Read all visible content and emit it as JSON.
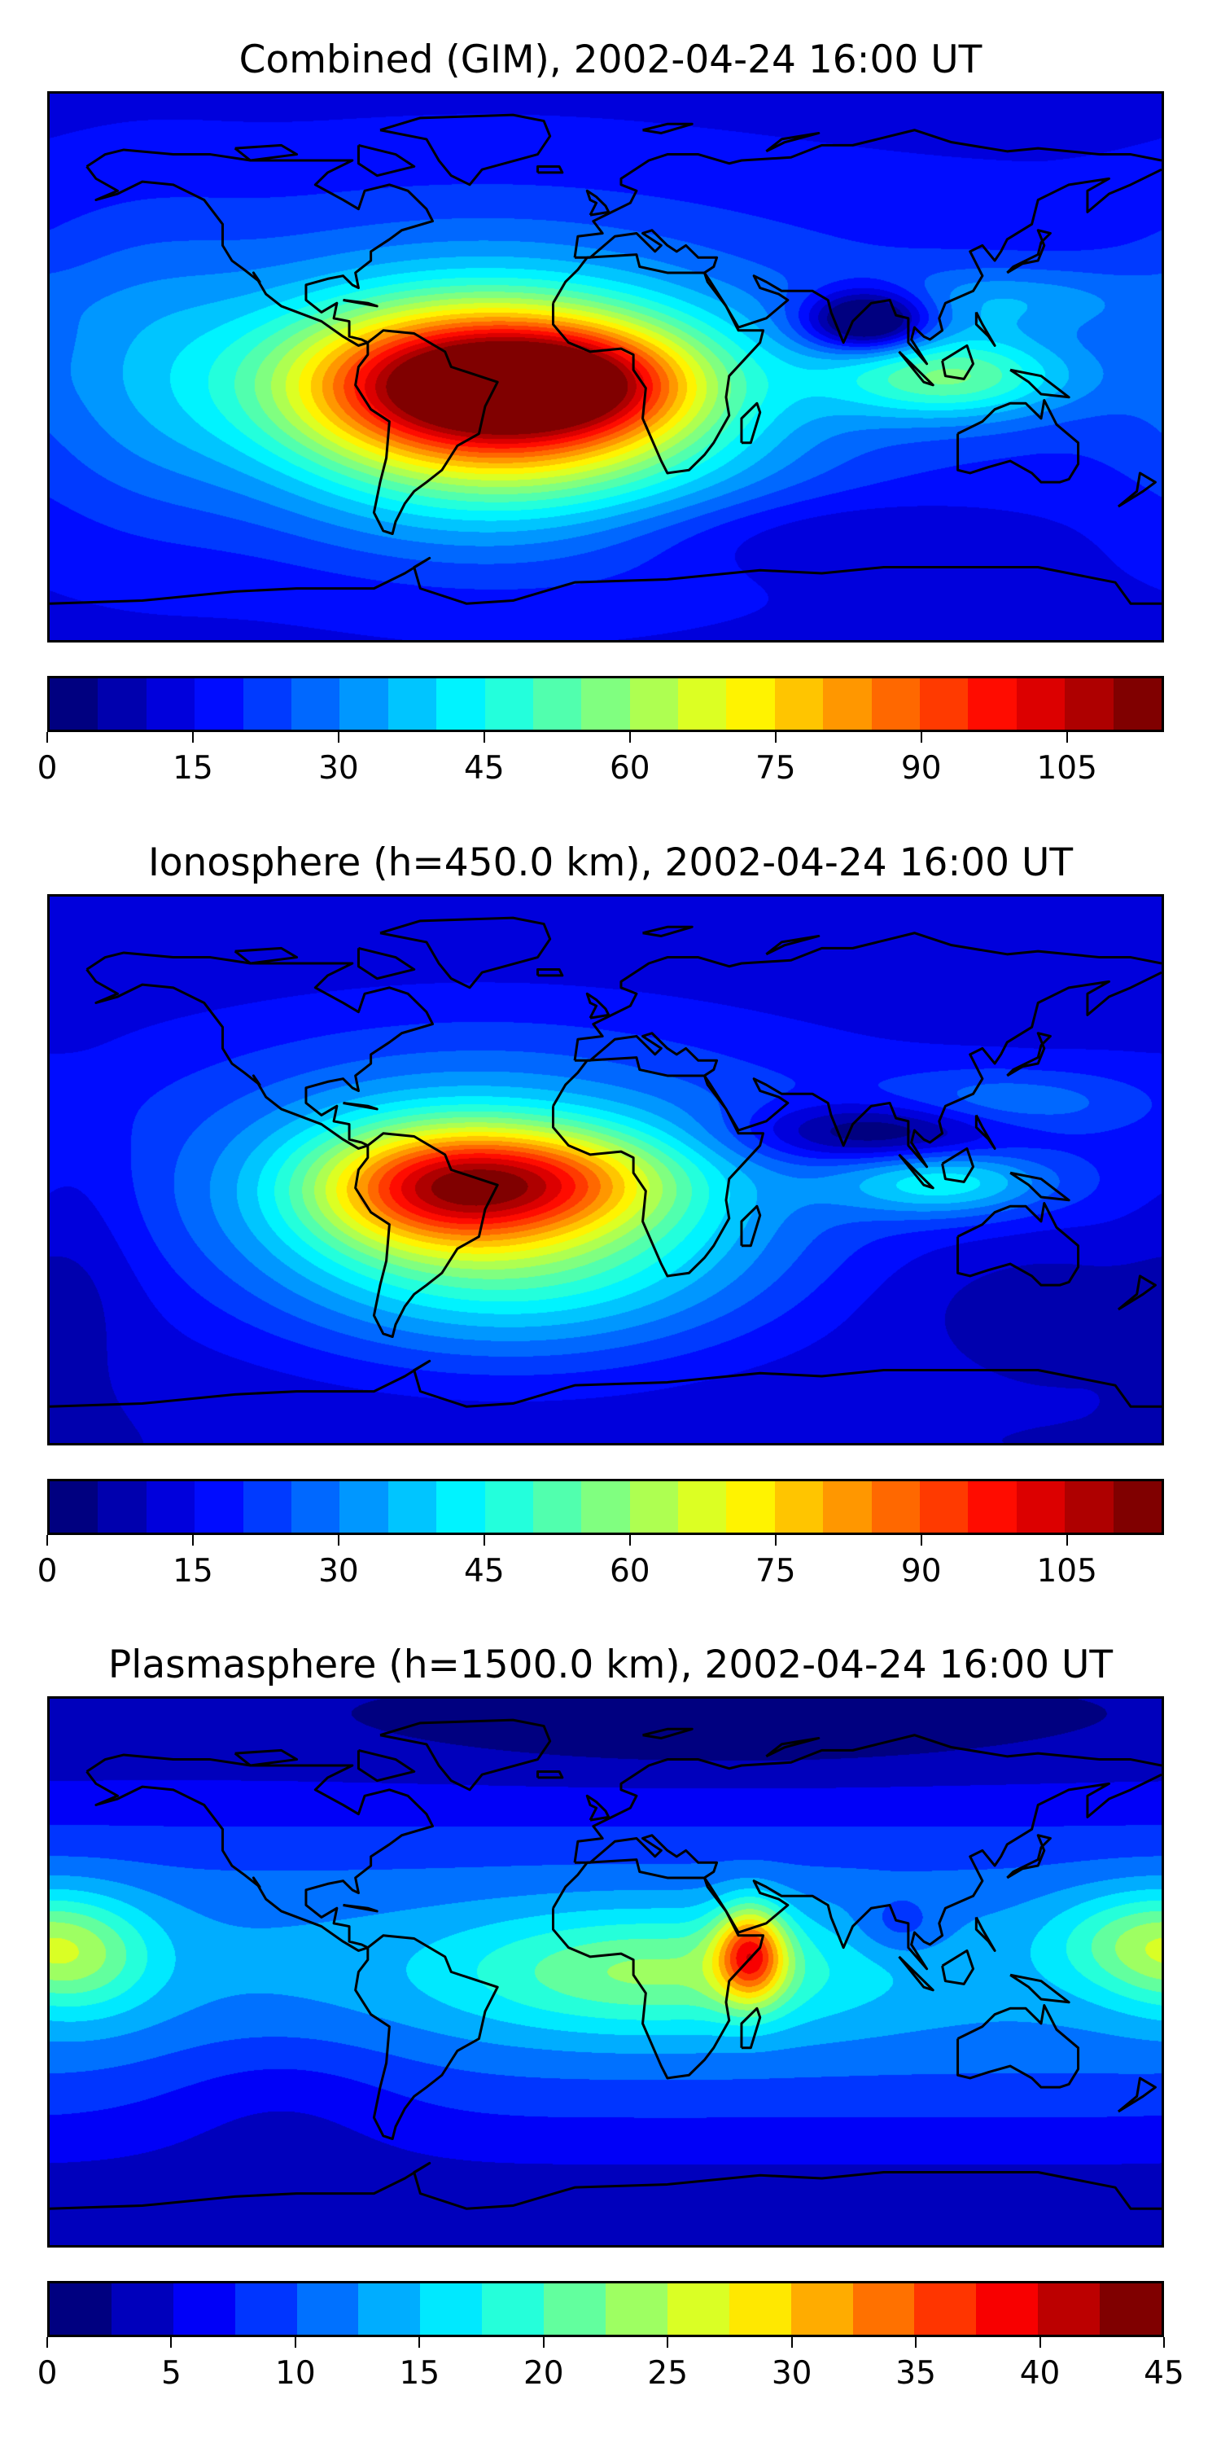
{
  "chart_data": [
    {
      "type": "heatmap",
      "title": "Combined (GIM), 2002-04-24 16:00 UT",
      "colormap": "jet",
      "vmin": 0,
      "vmax": 115,
      "level_step": 5,
      "colorbar_ticks": [
        "0",
        "15",
        "30",
        "45",
        "60",
        "75",
        "90",
        "105"
      ],
      "tick_values": [
        0,
        15,
        30,
        45,
        60,
        75,
        90,
        105
      ],
      "lon_range": [
        -180,
        180
      ],
      "lat_range": [
        -90,
        90
      ],
      "field": {
        "base": 14,
        "base_equatorial": 6,
        "components": [
          {
            "lon": -40,
            "lat": -5,
            "slon": 42,
            "slat": 17,
            "amp": 78
          },
          {
            "lon": -5,
            "lat": -5,
            "slon": 25,
            "slat": 12,
            "amp": 22
          },
          {
            "lon": -30,
            "lat": -28,
            "slon": 55,
            "slat": 24,
            "amp": 32
          },
          {
            "lon": -40,
            "lat": 10,
            "slon": 70,
            "slat": 30,
            "amp": 18
          },
          {
            "lon": 112,
            "lat": -3,
            "slon": 28,
            "slat": 10,
            "amp": 34
          },
          {
            "lon": 130,
            "lat": 22,
            "slon": 30,
            "slat": 8,
            "amp": 14
          },
          {
            "lon": 85,
            "lat": 15,
            "slon": 14,
            "slat": 7,
            "amp": -40
          },
          {
            "lon": -150,
            "lat": 0,
            "slon": 25,
            "slat": 35,
            "amp": 8
          },
          {
            "lon": 60,
            "lat": -55,
            "slon": 50,
            "slat": 10,
            "amp": -8
          }
        ]
      }
    },
    {
      "type": "heatmap",
      "title": "Ionosphere  (h=450.0 km), 2002-04-24 16:00 UT",
      "colormap": "jet",
      "vmin": 0,
      "vmax": 115,
      "level_step": 5,
      "colorbar_ticks": [
        "0",
        "15",
        "30",
        "45",
        "60",
        "75",
        "90",
        "105"
      ],
      "tick_values": [
        0,
        15,
        30,
        45,
        60,
        75,
        90,
        105
      ],
      "lon_range": [
        -180,
        180
      ],
      "lat_range": [
        -90,
        90
      ],
      "field": {
        "base": 10,
        "base_equatorial": 6,
        "components": [
          {
            "lon": -55,
            "lat": -5,
            "slon": 30,
            "slat": 14,
            "amp": 48
          },
          {
            "lon": -15,
            "lat": -3,
            "slon": 30,
            "slat": 12,
            "amp": 30
          },
          {
            "lon": -30,
            "lat": -28,
            "slon": 55,
            "slat": 24,
            "amp": 33
          },
          {
            "lon": -40,
            "lat": 8,
            "slon": 70,
            "slat": 30,
            "amp": 18
          },
          {
            "lon": 110,
            "lat": -4,
            "slon": 25,
            "slat": 8,
            "amp": 26
          },
          {
            "lon": 130,
            "lat": 22,
            "slon": 30,
            "slat": 8,
            "amp": 14
          },
          {
            "lon": 88,
            "lat": 12,
            "slon": 30,
            "slat": 7,
            "amp": -22
          },
          {
            "lon": 140,
            "lat": -40,
            "slon": 40,
            "slat": 15,
            "amp": -6
          },
          {
            "lon": -170,
            "lat": -20,
            "slon": 15,
            "slat": 30,
            "amp": -5
          }
        ]
      }
    },
    {
      "type": "heatmap",
      "title": "Plasmasphere (h=1500.0 km), 2002-04-24 16:00 UT",
      "colormap": "jet",
      "vmin": 0,
      "vmax": 45,
      "level_step": 2.5,
      "colorbar_ticks": [
        "0",
        "5",
        "10",
        "15",
        "20",
        "25",
        "30",
        "35",
        "40",
        "45"
      ],
      "tick_values": [
        0,
        5,
        10,
        15,
        20,
        25,
        30,
        35,
        40,
        45
      ],
      "lon_range": [
        -180,
        180
      ],
      "lat_range": [
        -90,
        90
      ],
      "field": {
        "base": 3,
        "base_equatorial": 10,
        "components": [
          {
            "lon": 47,
            "lat": 6,
            "slon": 8,
            "slat": 11,
            "amp": 20
          },
          {
            "lon": 15,
            "lat": 0,
            "slon": 45,
            "slat": 14,
            "amp": 10
          },
          {
            "lon": -170,
            "lat": 5,
            "slon": 18,
            "slat": 14,
            "amp": 8
          },
          {
            "lon": 170,
            "lat": 10,
            "slon": 20,
            "slat": 12,
            "amp": 7
          },
          {
            "lon": 95,
            "lat": 15,
            "slon": 10,
            "slat": 7,
            "amp": -4
          },
          {
            "lon": -105,
            "lat": -40,
            "slon": 30,
            "slat": 18,
            "amp": -3
          },
          {
            "lon": 40,
            "lat": 80,
            "slon": 70,
            "slat": 10,
            "amp": -3
          }
        ]
      }
    }
  ]
}
